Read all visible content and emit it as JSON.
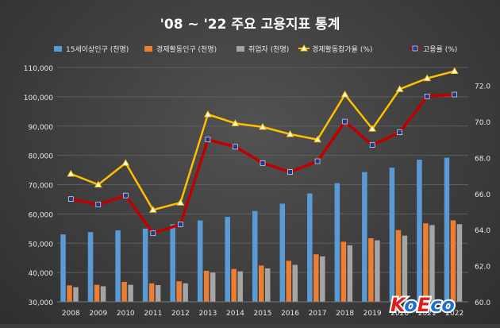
{
  "chart_data": {
    "type": "bar",
    "title": "'08 ~ '22 주요 고용지표 통계",
    "categories": [
      "2008",
      "2009",
      "2010",
      "2011",
      "2012",
      "2013",
      "2014",
      "2015",
      "2016",
      "2017",
      "2018",
      "2019",
      "2020",
      "2021",
      "2022"
    ],
    "y_left": {
      "ylim": [
        30000,
        110000
      ],
      "ticks": [
        "30,000",
        "40,000",
        "50,000",
        "60,000",
        "70,000",
        "80,000",
        "90,000",
        "100,000",
        "110,000"
      ]
    },
    "y_right": {
      "ylim": [
        60.0,
        73.0
      ],
      "ticks": [
        "60.0",
        "62.0",
        "64.0",
        "66.0",
        "68.0",
        "70.0",
        "72.0"
      ]
    },
    "series": [
      {
        "name": "15세이상인구 (천명)",
        "type": "bar",
        "axis": "left",
        "color": "#5b9bd5",
        "values": [
          53000,
          53800,
          54400,
          55000,
          56500,
          57800,
          59000,
          61000,
          63500,
          67000,
          70500,
          74300,
          75800,
          78500,
          79200
        ]
      },
      {
        "name": "경제활동인구 (천명)",
        "type": "bar",
        "axis": "left",
        "color": "#ed7d31",
        "values": [
          35600,
          35800,
          36800,
          36300,
          37000,
          40600,
          41200,
          42400,
          44000,
          46200,
          50500,
          51700,
          54500,
          56800,
          57800
        ]
      },
      {
        "name": "취업자 (천명)",
        "type": "bar",
        "axis": "left",
        "color": "#a5a5a5",
        "values": [
          35000,
          35300,
          35800,
          35700,
          36300,
          40000,
          40400,
          41400,
          42600,
          45500,
          49300,
          51000,
          52600,
          56200,
          56500
        ]
      },
      {
        "name": "경제활동참가율 (%)",
        "type": "line",
        "axis": "right",
        "color": "#ffc000",
        "values": [
          67.1,
          66.5,
          67.7,
          65.1,
          65.5,
          70.4,
          69.9,
          69.7,
          69.3,
          69.0,
          71.5,
          69.6,
          71.8,
          72.4,
          72.8
        ]
      },
      {
        "name": "고용률 (%)",
        "type": "line",
        "axis": "right",
        "color": "#c00000",
        "values": [
          65.7,
          65.4,
          65.9,
          63.8,
          64.3,
          69.0,
          68.6,
          67.7,
          67.2,
          67.8,
          70.0,
          68.7,
          69.4,
          71.4,
          71.5
        ]
      }
    ],
    "grid": true,
    "legend": "top"
  },
  "watermark": "KoEco"
}
